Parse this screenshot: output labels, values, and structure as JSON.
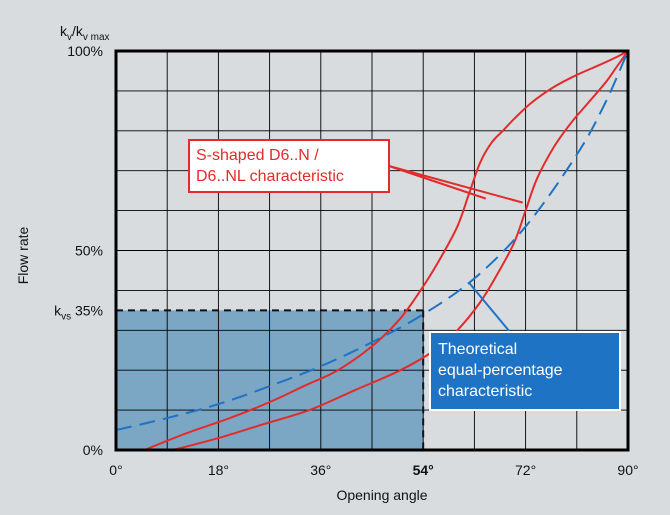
{
  "chart_data": {
    "type": "line",
    "y_top_label": {
      "k_main": "k",
      "v_sub": "v",
      "slash": "/k",
      "v_max_sub": "v max"
    },
    "ylabel": "Flow rate",
    "xlabel": "Opening angle",
    "xlim": [
      0,
      90
    ],
    "ylim": [
      0,
      100
    ],
    "x_ticks": [
      {
        "value": 0,
        "label": "0°",
        "bold": false
      },
      {
        "value": 18,
        "label": "18°",
        "bold": false
      },
      {
        "value": 36,
        "label": "36°",
        "bold": false
      },
      {
        "value": 54,
        "label": "54°",
        "bold": true
      },
      {
        "value": 72,
        "label": "72°",
        "bold": false
      },
      {
        "value": 90,
        "label": "90°",
        "bold": false
      }
    ],
    "y_ticks": [
      {
        "value": 0,
        "label": "0%"
      },
      {
        "value": 50,
        "label": "50%"
      },
      {
        "value": 100,
        "label": "100%"
      }
    ],
    "kvs_marker": {
      "k_main": "k",
      "vs_sub": "vs",
      "value_label": "35%",
      "x": 54,
      "y": 35
    },
    "grid": true,
    "grid_x": [
      0,
      9,
      18,
      27,
      36,
      45,
      54,
      63,
      72,
      81,
      90
    ],
    "grid_y": [
      0,
      10,
      20,
      30,
      40,
      50,
      60,
      70,
      80,
      90,
      100
    ],
    "shaded_region": {
      "x": [
        0,
        54
      ],
      "y": [
        0,
        35
      ],
      "color": "#7ba7c4"
    },
    "series": [
      {
        "name": "S-shaped D6..N / D6..NL characteristic",
        "color": "#e32b2b",
        "style": "solid",
        "x": [
          5,
          12,
          20,
          27,
          33,
          39,
          45,
          50,
          54,
          57,
          60,
          62,
          64,
          66,
          68,
          70,
          73,
          77,
          81,
          85,
          88,
          90
        ],
        "y": [
          0,
          4,
          8,
          12,
          16,
          20,
          26,
          33,
          41,
          48,
          56,
          64,
          72,
          77,
          80,
          83,
          87,
          91,
          94,
          96.5,
          98.5,
          100
        ]
      },
      {
        "name": "S-shaped D6..N / D6..NL characteristic",
        "color": "#e32b2b",
        "style": "solid",
        "x": [
          10,
          18,
          26,
          34,
          42,
          50,
          56,
          60,
          64,
          67,
          70,
          72,
          74,
          77,
          80,
          83,
          86,
          88,
          90
        ],
        "y": [
          0,
          3,
          6.5,
          10,
          15,
          20,
          25,
          30,
          37,
          44,
          52,
          60,
          68,
          76,
          82,
          87,
          92,
          96,
          100
        ]
      },
      {
        "name": "Theoretical equal-percentage characteristic",
        "color": "#1f73c4",
        "style": "dashed",
        "x": [
          0,
          9,
          18,
          27,
          36,
          45,
          54,
          63,
          72,
          81,
          86,
          90
        ],
        "y": [
          5,
          8,
          11.5,
          16,
          21,
          27,
          34,
          43,
          56,
          74,
          87,
          100
        ]
      }
    ],
    "annotations": [
      {
        "id": "s-curve",
        "lines": [
          "S-shaped D6..N /",
          "D6..NL characteristic"
        ],
        "bg": "#ffffff",
        "border": "#e32b2b",
        "text_color": "#e32b2b",
        "pointer_color": "#e32b2b",
        "targets": [
          {
            "x": 65,
            "y": 63
          },
          {
            "x": 71.5,
            "y": 62
          }
        ]
      },
      {
        "id": "theoretical",
        "lines": [
          "Theoretical",
          "equal-percentage",
          "characteristic"
        ],
        "bg": "#1f73c4",
        "border": "#ffffff",
        "text_color": "#ffffff",
        "pointer_color": "#1f73c4",
        "targets": [
          {
            "x": 62,
            "y": 42
          }
        ]
      }
    ]
  },
  "colors": {
    "background": "#d9dcdf",
    "plot_background": "#d9dcdf",
    "grid": "#000000",
    "accent_red": "#e32b2b",
    "accent_blue": "#1f73c4"
  }
}
